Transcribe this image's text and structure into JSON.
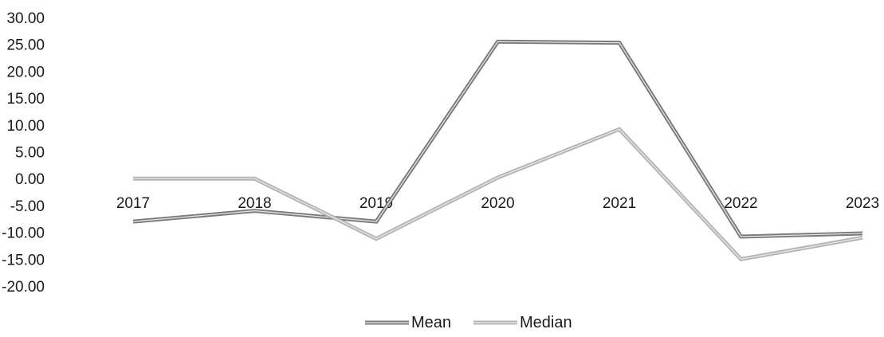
{
  "chart_data": {
    "type": "line",
    "title": "",
    "xlabel": "",
    "ylabel": "",
    "categories": [
      "2017",
      "2018",
      "2019",
      "2020",
      "2021",
      "2022",
      "2023"
    ],
    "series": [
      {
        "name": "Mean",
        "color": "#7a7a7a",
        "values": [
          -8.0,
          -6.0,
          -8.0,
          25.5,
          25.3,
          -10.8,
          -10.2
        ]
      },
      {
        "name": "Median",
        "color": "#b4b4b4",
        "values": [
          0.0,
          0.0,
          -11.2,
          0.2,
          9.2,
          -15.0,
          -11.0
        ]
      }
    ],
    "ylim": [
      -20,
      30
    ],
    "yticks": [
      "30.00",
      "25.00",
      "20.00",
      "15.00",
      "10.00",
      "5.00",
      "0.00",
      "-5.00",
      "-10.00",
      "-15.00",
      "-20.00"
    ],
    "grid": false,
    "legend": "bottom"
  }
}
